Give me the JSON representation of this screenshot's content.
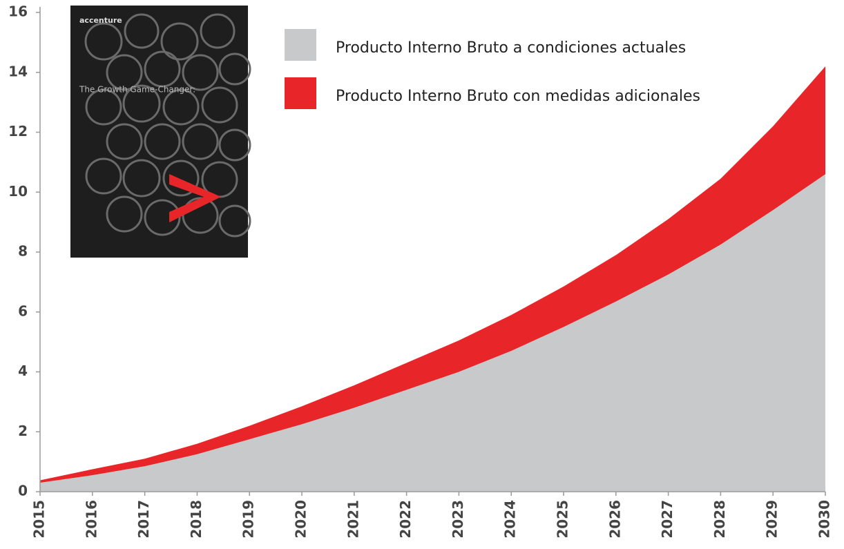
{
  "chart_data": {
    "type": "stacked-area",
    "categories": [
      "2015",
      "2016",
      "2017",
      "2018",
      "2019",
      "2020",
      "2021",
      "2022",
      "2023",
      "2024",
      "2025",
      "2026",
      "2027",
      "2028",
      "2029",
      "2030"
    ],
    "series": [
      {
        "name": "Producto Interno Bruto a condiciones actuales",
        "color": "#c8c9cb",
        "values": [
          0.3,
          0.55,
          0.85,
          1.25,
          1.75,
          2.25,
          2.8,
          3.4,
          4.0,
          4.7,
          5.5,
          6.35,
          7.25,
          8.25,
          9.4,
          10.6
        ]
      },
      {
        "name": "Producto Interno Bruto con medidas adicionales",
        "color": "#e8262a",
        "values": [
          0.08,
          0.2,
          0.25,
          0.35,
          0.45,
          0.6,
          0.75,
          0.9,
          1.05,
          1.2,
          1.35,
          1.55,
          1.85,
          2.2,
          2.8,
          3.6
        ]
      }
    ],
    "ylim": [
      0,
      16
    ],
    "yticks": [
      0,
      2,
      4,
      6,
      8,
      10,
      12,
      14,
      16
    ],
    "grid": false
  },
  "cover": {
    "brand": "accenture",
    "title": "The Growth Game-Changer:"
  }
}
